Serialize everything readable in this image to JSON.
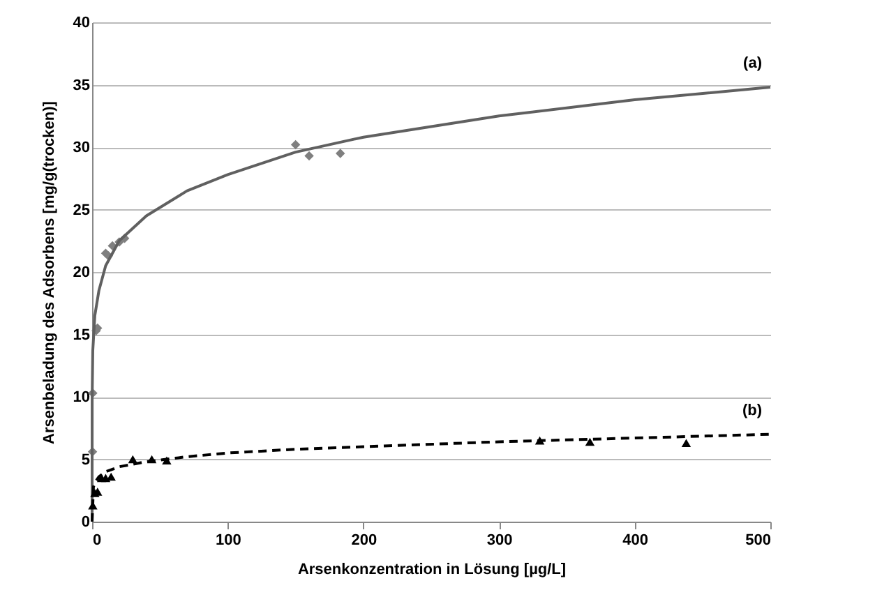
{
  "chart_data": {
    "type": "scatter",
    "xlabel": "Arsenkonzentration in Lösung [µg/L]",
    "ylabel": "Arsenbeladung des Adsorbens [mg/g(trocken)]",
    "xlim": [
      0,
      500
    ],
    "xticks": [
      0,
      100,
      200,
      300,
      400,
      500
    ],
    "ylim": [
      0,
      40
    ],
    "yticks": [
      0,
      5,
      10,
      15,
      20,
      25,
      30,
      35,
      40
    ],
    "grid": "y",
    "series": [
      {
        "color": "#7f7f7f",
        "marker": "diamond",
        "x": [
          0.3,
          0.5,
          3,
          4,
          10,
          12,
          15,
          20,
          24,
          150,
          160,
          183
        ],
        "values": [
          5.6,
          10.3,
          15.3,
          15.5,
          21.5,
          21.3,
          22.1,
          22.4,
          22.7,
          30.2,
          29.3,
          29.5
        ]
      },
      {
        "type": "line",
        "color": "#606060",
        "line_style": "solid",
        "marker": "none",
        "x": [
          0,
          0.05,
          0.5,
          2,
          5,
          10,
          20,
          40,
          70,
          100,
          150,
          200,
          300,
          400,
          500
        ],
        "values": [
          0,
          10,
          13.7,
          16.5,
          18.5,
          20.5,
          22.5,
          24.5,
          26.5,
          27.8,
          29.6,
          30.8,
          32.5,
          33.8,
          34.8
        ]
      },
      {
        "color": "#000000",
        "marker": "triangle",
        "x": [
          0.5,
          2,
          4,
          7,
          10,
          14,
          30,
          44,
          55,
          330,
          367,
          438
        ],
        "values": [
          1.3,
          2.3,
          2.4,
          3.5,
          3.5,
          3.6,
          5.0,
          5.0,
          4.9,
          6.5,
          6.4,
          6.3
        ]
      },
      {
        "type": "line",
        "color": "#000000",
        "line_style": "dashed",
        "marker": "none",
        "x": [
          0,
          1,
          2.5,
          5,
          10,
          20,
          40,
          70,
          100,
          150,
          200,
          300,
          400,
          500
        ],
        "values": [
          0,
          2.8,
          3.2,
          3.6,
          4.0,
          4.4,
          4.8,
          5.2,
          5.5,
          5.8,
          6.0,
          6.4,
          6.7,
          7.0
        ]
      }
    ],
    "annotations": [
      "(a)",
      "(b)"
    ]
  }
}
